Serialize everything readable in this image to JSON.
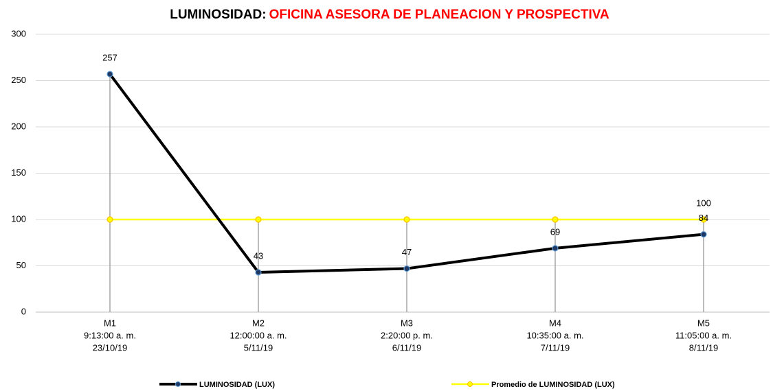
{
  "chart_data": {
    "type": "line",
    "title": "LUMINOSIDAD:",
    "title_highlight": "OFICINA ASESORA DE PLANEACION Y PROSPECTIVA",
    "title_highlight_color": "#ff0000",
    "categories": [
      [
        "M1",
        "9:13:00 a. m.",
        "23/10/19"
      ],
      [
        "M2",
        "12:00:00 a. m.",
        "5/11/19"
      ],
      [
        "M3",
        "2:20:00 p. m.",
        "6/11/19"
      ],
      [
        "M4",
        "10:35:00 a. m.",
        "7/11/19"
      ],
      [
        "M5",
        "11:05:00 a. m.",
        "8/11/19"
      ]
    ],
    "series": [
      {
        "name": "LUMINOSIDAD (LUX)",
        "color": "#000000",
        "marker_color": "#1f3864",
        "values": [
          257,
          43,
          47,
          69,
          84
        ],
        "data_labels": [
          true,
          true,
          true,
          true,
          true
        ]
      },
      {
        "name": "Promedio de LUMINOSIDAD (LUX)",
        "color": "#ffff00",
        "marker_color": "#ffc000",
        "values": [
          100,
          100,
          100,
          100,
          100
        ],
        "data_labels": [
          false,
          false,
          false,
          false,
          true
        ]
      }
    ],
    "ylim": [
      0,
      300
    ],
    "yticks": [
      0,
      50,
      100,
      150,
      200,
      250,
      300
    ],
    "grid": true,
    "drop_lines": true,
    "legend": "bottom"
  }
}
